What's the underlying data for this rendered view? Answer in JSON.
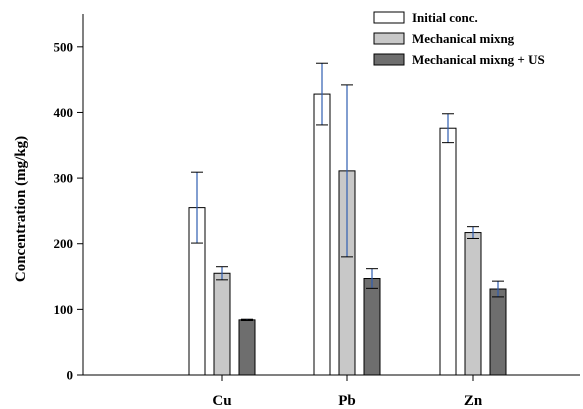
{
  "chart_data": {
    "type": "bar",
    "title": "",
    "xlabel": "",
    "ylabel": "Concentration (mg/kg)",
    "ylim": [
      0,
      550
    ],
    "yticks": [
      0,
      100,
      200,
      300,
      400,
      500
    ],
    "grid": false,
    "legend_position": "top-right",
    "categories": [
      "Cu",
      "Pb",
      "Zn"
    ],
    "series": [
      {
        "name": "Initial conc.",
        "color": "#ffffff",
        "values": [
          255,
          428,
          376
        ],
        "errors": [
          54,
          47,
          22
        ]
      },
      {
        "name": "Mechanical mixng",
        "color": "#c8c8c8",
        "values": [
          155,
          311,
          217
        ],
        "errors": [
          10,
          131,
          9
        ]
      },
      {
        "name": "Mechanical mixng + US",
        "color": "#6e6e6e",
        "values": [
          84,
          147,
          131
        ],
        "errors": [
          1,
          15,
          12
        ]
      }
    ],
    "error_bar_color": "#2f5db0"
  }
}
